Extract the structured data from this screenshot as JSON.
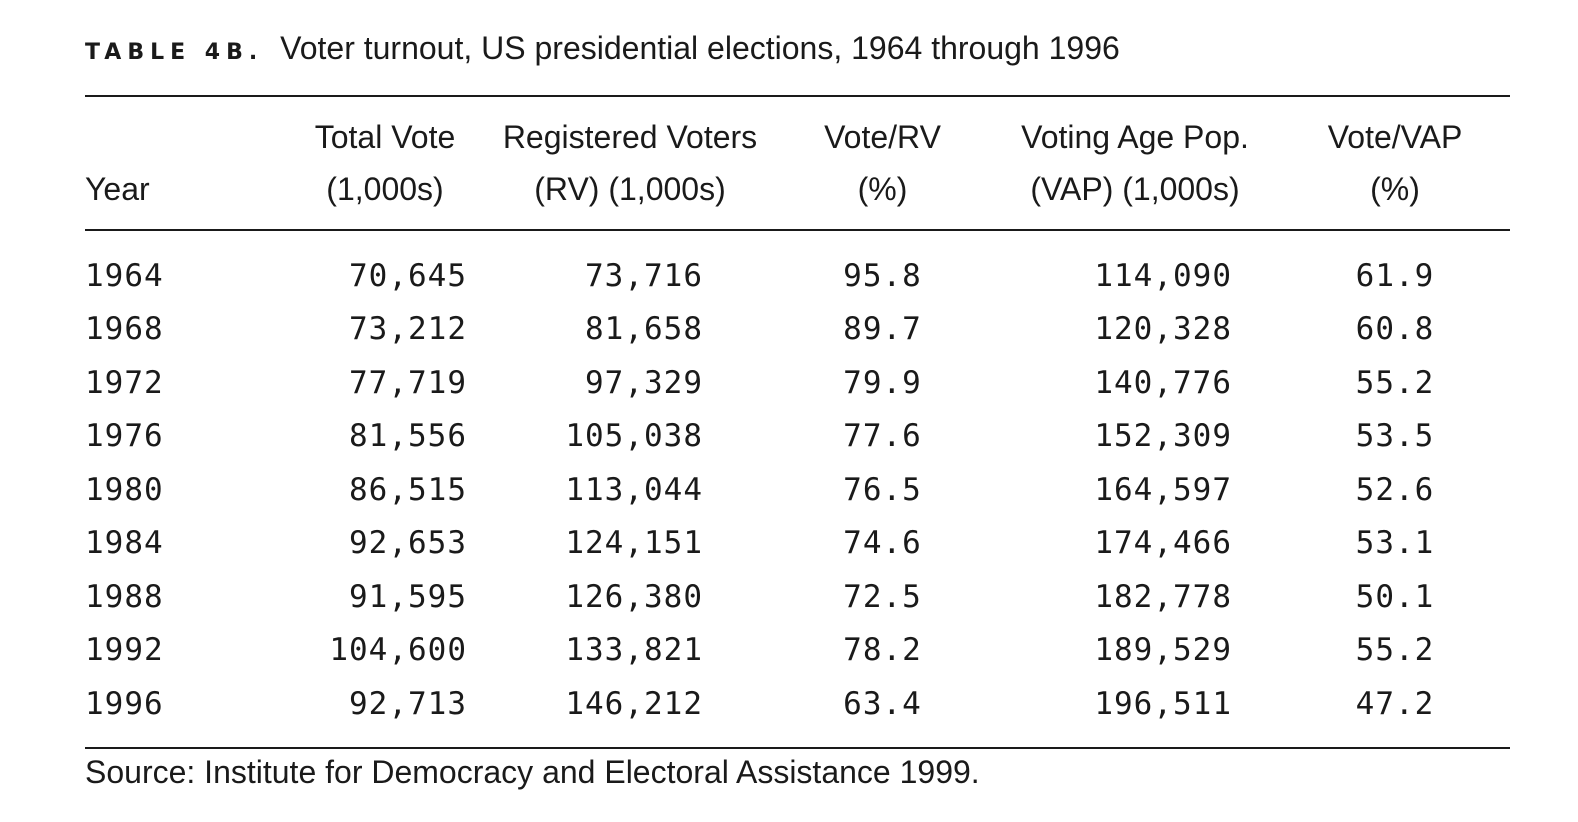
{
  "caption": {
    "label": "TABLE 4B.",
    "title": "Voter turnout, US presidential elections, 1964 through 1996"
  },
  "table": {
    "headers": [
      {
        "line1": "",
        "line2": "Year"
      },
      {
        "line1": "Total Vote",
        "line2": "(1,000s)"
      },
      {
        "line1": "Registered Voters",
        "line2": "(RV) (1,000s)"
      },
      {
        "line1": "Vote/RV",
        "line2": "(%)"
      },
      {
        "line1": "Voting Age Pop.",
        "line2": "(VAP) (1,000s)"
      },
      {
        "line1": "Vote/VAP",
        "line2": "(%)"
      }
    ],
    "rows": [
      [
        "1964",
        "70,645",
        "73,716",
        "95.8",
        "114,090",
        "61.9"
      ],
      [
        "1968",
        "73,212",
        "81,658",
        "89.7",
        "120,328",
        "60.8"
      ],
      [
        "1972",
        "77,719",
        "97,329",
        "79.9",
        "140,776",
        "55.2"
      ],
      [
        "1976",
        "81,556",
        "105,038",
        "77.6",
        "152,309",
        "53.5"
      ],
      [
        "1980",
        "86,515",
        "113,044",
        "76.5",
        "164,597",
        "52.6"
      ],
      [
        "1984",
        "92,653",
        "124,151",
        "74.6",
        "174,466",
        "53.1"
      ],
      [
        "1988",
        "91,595",
        "126,380",
        "72.5",
        "182,778",
        "50.1"
      ],
      [
        "1992",
        "104,600",
        "133,821",
        "78.2",
        "189,529",
        "55.2"
      ],
      [
        "1996",
        "92,713",
        "146,212",
        "63.4",
        "196,511",
        "47.2"
      ]
    ]
  },
  "source": "Source: Institute for Democracy and Electoral Assistance 1999."
}
